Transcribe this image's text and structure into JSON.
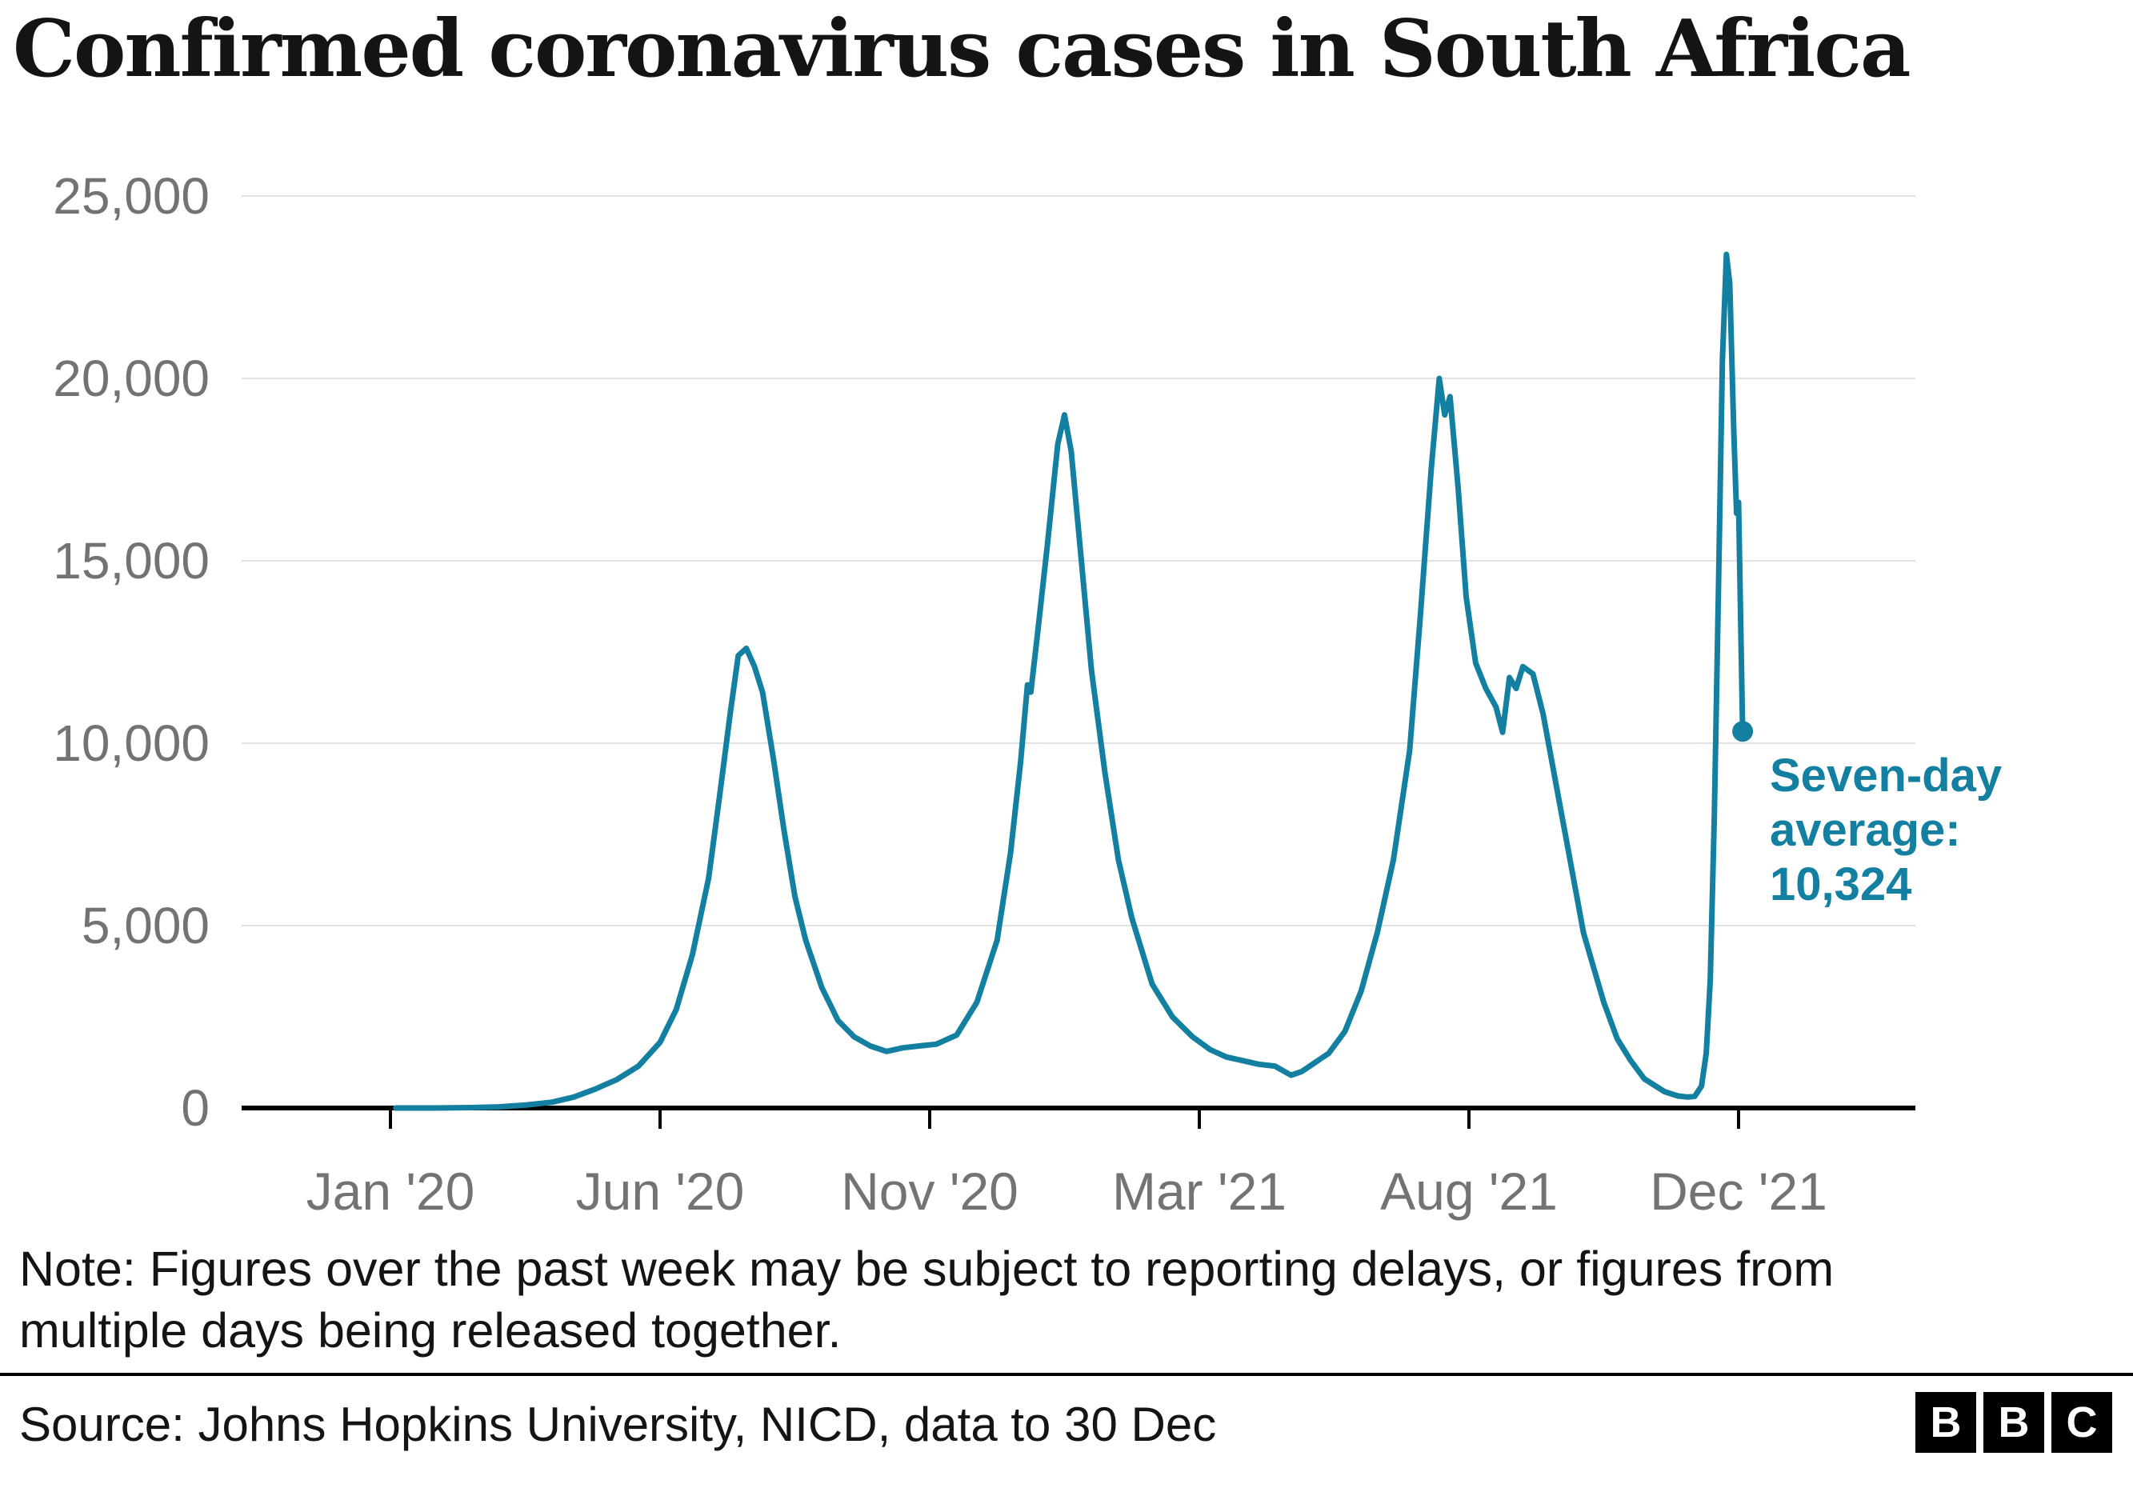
{
  "title": "Confirmed coronavirus cases in South Africa",
  "note": "Note: Figures over the past week may be subject to reporting delays, or figures from multiple days being released together.",
  "source": "Source: Johns Hopkins University, NICD, data to 30 Dec",
  "logo": {
    "letters": [
      "B",
      "B",
      "C"
    ]
  },
  "annotation": {
    "line1": "Seven-day",
    "line2": "average:",
    "line3": "10,324"
  },
  "colors": {
    "line": "#1380A1",
    "annotation": "#1380A1",
    "grid": "#e2e2e2",
    "axis": "#000000",
    "tick_label": "#737373",
    "title_text": "#141414"
  },
  "chart_data": {
    "type": "line",
    "title": "Confirmed coronavirus cases in South Africa",
    "series_name": "Seven-day average of confirmed cases",
    "last_value": 10324,
    "last_value_label": "Seven-day average: 10,324",
    "ylim": [
      0,
      25000
    ],
    "xlabel": "",
    "ylabel": "",
    "grid": "horizontal",
    "y_ticks": [
      {
        "value": 0,
        "label": "0"
      },
      {
        "value": 5000,
        "label": "5,000"
      },
      {
        "value": 10000,
        "label": "10,000"
      },
      {
        "value": 15000,
        "label": "15,000"
      },
      {
        "value": 20000,
        "label": "20,000"
      },
      {
        "value": 25000,
        "label": "25,000"
      }
    ],
    "x_ticks": [
      {
        "month": 0,
        "label": "Jan '20"
      },
      {
        "month": 5,
        "label": "Jun '20"
      },
      {
        "month": 10,
        "label": "Nov '20"
      },
      {
        "month": 14,
        "label": "Mar '21"
      },
      {
        "month": 19,
        "label": "Aug '21"
      },
      {
        "month": 23,
        "label": "Dec '21"
      }
    ],
    "points": [
      [
        0.1,
        0
      ],
      [
        0.8,
        0
      ],
      [
        1.5,
        10
      ],
      [
        2.0,
        30
      ],
      [
        2.5,
        80
      ],
      [
        3.0,
        160
      ],
      [
        3.4,
        300
      ],
      [
        3.8,
        520
      ],
      [
        4.2,
        780
      ],
      [
        4.6,
        1150
      ],
      [
        5.0,
        1800
      ],
      [
        5.3,
        2700
      ],
      [
        5.6,
        4200
      ],
      [
        5.9,
        6300
      ],
      [
        6.1,
        8500
      ],
      [
        6.3,
        10800
      ],
      [
        6.45,
        12400
      ],
      [
        6.6,
        12600
      ],
      [
        6.75,
        12100
      ],
      [
        6.9,
        11400
      ],
      [
        7.1,
        9600
      ],
      [
        7.3,
        7600
      ],
      [
        7.5,
        5800
      ],
      [
        7.7,
        4600
      ],
      [
        8.0,
        3300
      ],
      [
        8.3,
        2400
      ],
      [
        8.6,
        1950
      ],
      [
        8.9,
        1700
      ],
      [
        9.2,
        1550
      ],
      [
        9.5,
        1650
      ],
      [
        9.8,
        1700
      ],
      [
        10.1,
        1750
      ],
      [
        10.4,
        2000
      ],
      [
        10.7,
        2900
      ],
      [
        11.0,
        4600
      ],
      [
        11.2,
        7000
      ],
      [
        11.35,
        9500
      ],
      [
        11.45,
        11600
      ],
      [
        11.5,
        11400
      ],
      [
        11.6,
        13000
      ],
      [
        11.75,
        15500
      ],
      [
        11.9,
        18200
      ],
      [
        12.0,
        19000
      ],
      [
        12.1,
        18000
      ],
      [
        12.25,
        15000
      ],
      [
        12.4,
        12000
      ],
      [
        12.6,
        9200
      ],
      [
        12.8,
        6800
      ],
      [
        13.0,
        5200
      ],
      [
        13.3,
        3400
      ],
      [
        13.6,
        2500
      ],
      [
        13.9,
        1950
      ],
      [
        14.2,
        1600
      ],
      [
        14.5,
        1400
      ],
      [
        14.8,
        1300
      ],
      [
        15.1,
        1200
      ],
      [
        15.4,
        1150
      ],
      [
        15.7,
        900
      ],
      [
        15.9,
        1000
      ],
      [
        16.1,
        1200
      ],
      [
        16.4,
        1500
      ],
      [
        16.7,
        2100
      ],
      [
        17.0,
        3200
      ],
      [
        17.3,
        4800
      ],
      [
        17.6,
        6800
      ],
      [
        17.9,
        9800
      ],
      [
        18.1,
        13500
      ],
      [
        18.3,
        17500
      ],
      [
        18.45,
        20000
      ],
      [
        18.55,
        19000
      ],
      [
        18.65,
        19500
      ],
      [
        18.8,
        17000
      ],
      [
        18.95,
        14000
      ],
      [
        19.1,
        12200
      ],
      [
        19.25,
        11500
      ],
      [
        19.4,
        11000
      ],
      [
        19.5,
        10300
      ],
      [
        19.6,
        11800
      ],
      [
        19.7,
        11500
      ],
      [
        19.8,
        12100
      ],
      [
        19.95,
        11900
      ],
      [
        20.1,
        10800
      ],
      [
        20.3,
        8800
      ],
      [
        20.5,
        6800
      ],
      [
        20.7,
        4800
      ],
      [
        21.0,
        2900
      ],
      [
        21.2,
        1900
      ],
      [
        21.4,
        1300
      ],
      [
        21.6,
        800
      ],
      [
        21.9,
        450
      ],
      [
        22.1,
        330
      ],
      [
        22.25,
        300
      ],
      [
        22.35,
        320
      ],
      [
        22.45,
        600
      ],
      [
        22.52,
        1500
      ],
      [
        22.58,
        3500
      ],
      [
        22.64,
        8000
      ],
      [
        22.7,
        14000
      ],
      [
        22.76,
        20500
      ],
      [
        22.82,
        23400
      ],
      [
        22.87,
        22600
      ],
      [
        22.93,
        18500
      ],
      [
        22.97,
        16300
      ],
      [
        23.0,
        16600
      ],
      [
        23.03,
        13500
      ],
      [
        23.06,
        10324
      ]
    ]
  }
}
